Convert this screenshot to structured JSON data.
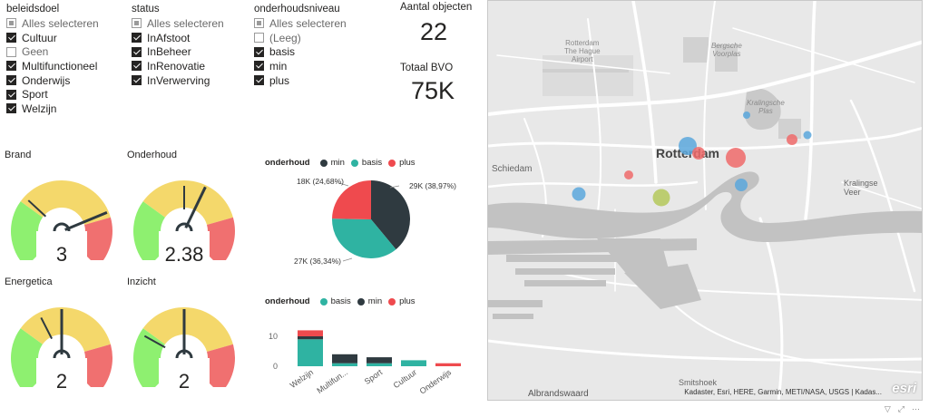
{
  "slicers": [
    {
      "title": "beleidsdoel",
      "items": [
        {
          "label": "Alles selecteren",
          "state": "partial"
        },
        {
          "label": "Cultuur",
          "state": "checked"
        },
        {
          "label": "Geen",
          "state": "unchecked"
        },
        {
          "label": "Multifunctioneel",
          "state": "checked"
        },
        {
          "label": "Onderwijs",
          "state": "checked"
        },
        {
          "label": "Sport",
          "state": "checked"
        },
        {
          "label": "Welzijn",
          "state": "checked"
        }
      ]
    },
    {
      "title": "status",
      "items": [
        {
          "label": "Alles selecteren",
          "state": "partial"
        },
        {
          "label": "InAfstoot",
          "state": "checked"
        },
        {
          "label": "InBeheer",
          "state": "checked"
        },
        {
          "label": "InRenovatie",
          "state": "checked"
        },
        {
          "label": "InVerwerving",
          "state": "checked"
        }
      ]
    },
    {
      "title": "onderhoudsniveau",
      "items": [
        {
          "label": "Alles selecteren",
          "state": "partial"
        },
        {
          "label": "(Leeg)",
          "state": "unchecked"
        },
        {
          "label": "basis",
          "state": "checked"
        },
        {
          "label": "min",
          "state": "checked"
        },
        {
          "label": "plus",
          "state": "checked"
        }
      ]
    }
  ],
  "cards": {
    "objects": {
      "title": "Aantal objecten",
      "value": "22"
    },
    "bvo": {
      "title": "Totaal BVO",
      "value": "75K"
    }
  },
  "colors": {
    "red": "#f07070",
    "yellow": "#f4d86b",
    "green": "#8ef070",
    "teal": "#2fb3a2",
    "dark": "#2f3a40",
    "pie_red": "#ef4a4e"
  },
  "gauges": [
    {
      "title": "Brand",
      "value_text": "3",
      "value": 3,
      "needles": [
        3.0,
        1.3
      ]
    },
    {
      "title": "Onderhoud",
      "value_text": "2.38",
      "value": 2.38,
      "needles": [
        2.38,
        2.0
      ]
    },
    {
      "title": "Energetica",
      "value_text": "2",
      "value": 2,
      "needles": [
        2.0,
        1.6
      ]
    },
    {
      "title": "Inzicht",
      "value_text": "2",
      "value": 2,
      "needles": [
        2.0,
        1.1
      ]
    }
  ],
  "pie": {
    "legend_title": "onderhoud",
    "legend": [
      "min",
      "basis",
      "plus"
    ],
    "labels": {
      "min": "29K (38,97%)",
      "basis": "27K (36,34%)",
      "plus": "18K (24,68%)"
    }
  },
  "bar": {
    "legend_title": "onderhoud",
    "legend": [
      "basis",
      "min",
      "plus"
    ],
    "y_ticks": [
      "10",
      "0"
    ]
  },
  "chart_data": [
    {
      "type": "pie",
      "slices": [
        {
          "name": "min",
          "value": 29,
          "percent": 38.97
        },
        {
          "name": "basis",
          "value": 27,
          "percent": 36.34
        },
        {
          "name": "plus",
          "value": 18,
          "percent": 24.68
        }
      ]
    },
    {
      "type": "bar",
      "stacked": true,
      "categories": [
        "Welzijn",
        "Multifun...",
        "Sport",
        "Cultuur",
        "Onderwijs"
      ],
      "series": [
        {
          "name": "basis",
          "values": [
            9,
            1,
            1,
            2,
            0
          ]
        },
        {
          "name": "min",
          "values": [
            1,
            3,
            2,
            0,
            0
          ]
        },
        {
          "name": "plus",
          "values": [
            2,
            0,
            0,
            0,
            1
          ]
        }
      ],
      "ylim": [
        0,
        13
      ]
    }
  ],
  "map": {
    "labels": {
      "airport": [
        "Rotterdam",
        "The Hague",
        "Airport"
      ],
      "bergsche": [
        "Bergsche",
        "Voorplas"
      ],
      "kralingsche": [
        "Kralingsche",
        "Plas"
      ],
      "city": "Rotterdam",
      "schiedam": "Schiedam",
      "kralingse_veer": [
        "Kralingse",
        "Veer"
      ],
      "smitshoek": "Smitshoek",
      "albrandswaard": "Albrandswaard"
    },
    "attribution": "Kadaster, Esri, HERE, Garmin, METI/NASA, USGS | Kadas...",
    "logo": "esri"
  }
}
